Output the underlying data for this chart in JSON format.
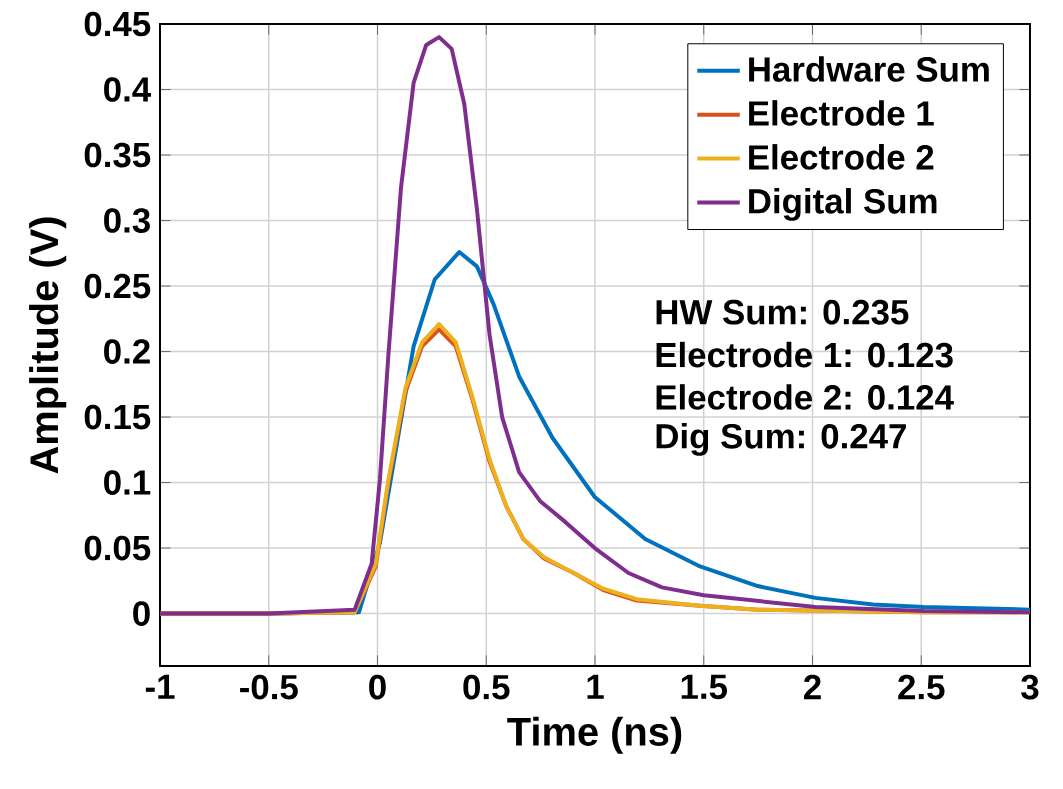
{
  "chart_data": {
    "type": "line",
    "xlabel": "Time (ns)",
    "ylabel": "Amplitude (V)",
    "xlim": [
      -1,
      3
    ],
    "xticks": [
      -1,
      -0.5,
      0,
      0.5,
      1,
      1.5,
      2,
      2.5,
      3
    ],
    "ylim": [
      -0.04,
      0.45
    ],
    "yticks": [
      0,
      0.05,
      0.1,
      0.15,
      0.2,
      0.25,
      0.3,
      0.35,
      0.4,
      0.45
    ],
    "grid": true,
    "legend": "top right",
    "line_style": "solid",
    "annotations": [
      "HW Sum: 0.235",
      "Electrode 1: 0.123",
      "Electrode 2: 0.124",
      "Dig Sum: 0.247"
    ],
    "series": [
      {
        "name": "Hardware Sum",
        "color": "#0072bd",
        "x": [
          -1,
          -0.5,
          -0.085,
          0.011,
          0.166,
          0.263,
          0.376,
          0.457,
          0.534,
          0.651,
          0.805,
          0.999,
          1.231,
          1.483,
          1.748,
          2.013,
          2.278,
          2.51,
          3.0
        ],
        "values": [
          0,
          0,
          0.001,
          0.054,
          0.204,
          0.255,
          0.276,
          0.265,
          0.236,
          0.181,
          0.134,
          0.089,
          0.057,
          0.036,
          0.021,
          0.012,
          0.007,
          0.005,
          0.003
        ]
      },
      {
        "name": "Electrode 1",
        "color": "#d95319",
        "x": [
          -1,
          -0.5,
          -0.105,
          -0.008,
          0.05,
          0.128,
          0.205,
          0.283,
          0.36,
          0.437,
          0.515,
          0.592,
          0.67,
          0.766,
          0.902,
          1.038,
          1.192,
          1.483,
          1.748,
          2.51,
          3.0
        ],
        "values": [
          0,
          0,
          0.001,
          0.036,
          0.1,
          0.169,
          0.204,
          0.217,
          0.204,
          0.163,
          0.116,
          0.082,
          0.057,
          0.042,
          0.031,
          0.018,
          0.01,
          0.006,
          0.003,
          0.001,
          0.001
        ]
      },
      {
        "name": "Electrode 2",
        "color": "#edb120",
        "x": [
          -1,
          -0.5,
          -0.105,
          -0.008,
          0.05,
          0.128,
          0.205,
          0.283,
          0.36,
          0.437,
          0.515,
          0.592,
          0.67,
          0.766,
          0.902,
          1.038,
          1.192,
          1.483,
          1.748,
          2.51,
          3.0
        ],
        "values": [
          0,
          0,
          0.001,
          0.038,
          0.102,
          0.172,
          0.207,
          0.221,
          0.207,
          0.165,
          0.118,
          0.082,
          0.057,
          0.043,
          0.031,
          0.019,
          0.011,
          0.006,
          0.003,
          0.001,
          0.001
        ]
      },
      {
        "name": "Digital Sum",
        "color": "#7e2f8e",
        "x": [
          -1,
          -0.5,
          -0.105,
          -0.027,
          0.011,
          0.05,
          0.108,
          0.166,
          0.224,
          0.283,
          0.341,
          0.399,
          0.457,
          0.515,
          0.573,
          0.651,
          0.747,
          0.863,
          0.999,
          1.154,
          1.308,
          1.5,
          2.013,
          2.51,
          3.0
        ],
        "values": [
          0,
          0,
          0.003,
          0.038,
          0.102,
          0.197,
          0.325,
          0.405,
          0.434,
          0.44,
          0.431,
          0.389,
          0.309,
          0.213,
          0.15,
          0.108,
          0.086,
          0.07,
          0.05,
          0.031,
          0.02,
          0.014,
          0.005,
          0.002,
          0.001
        ]
      }
    ]
  }
}
